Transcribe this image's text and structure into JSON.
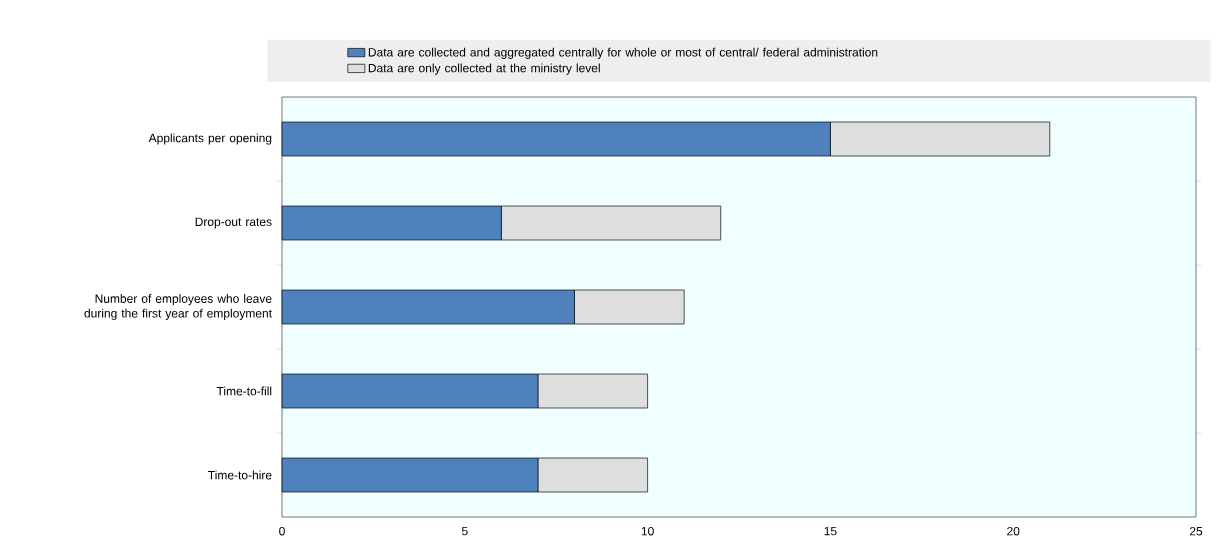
{
  "chart_data": {
    "type": "bar",
    "orientation": "horizontal",
    "stacked": true,
    "categories": [
      "Applicants per opening",
      "Drop-out rates",
      "Number of employees who leave during the first year of employment",
      "Time-to-fill",
      "Time-to-hire"
    ],
    "series": [
      {
        "name": "Data are collected and aggregated centrally for whole or most of central/ federal administration",
        "color": "#4f81bd",
        "values": [
          15,
          6,
          8,
          7,
          7
        ]
      },
      {
        "name": "Data are only collected at the ministry level",
        "color": "#dedede",
        "values": [
          6,
          6,
          3,
          3,
          3
        ]
      }
    ],
    "xlim": [
      0,
      25
    ],
    "xticks": [
      0,
      5,
      10,
      15,
      20,
      25
    ],
    "grid": false,
    "legend": "top"
  }
}
